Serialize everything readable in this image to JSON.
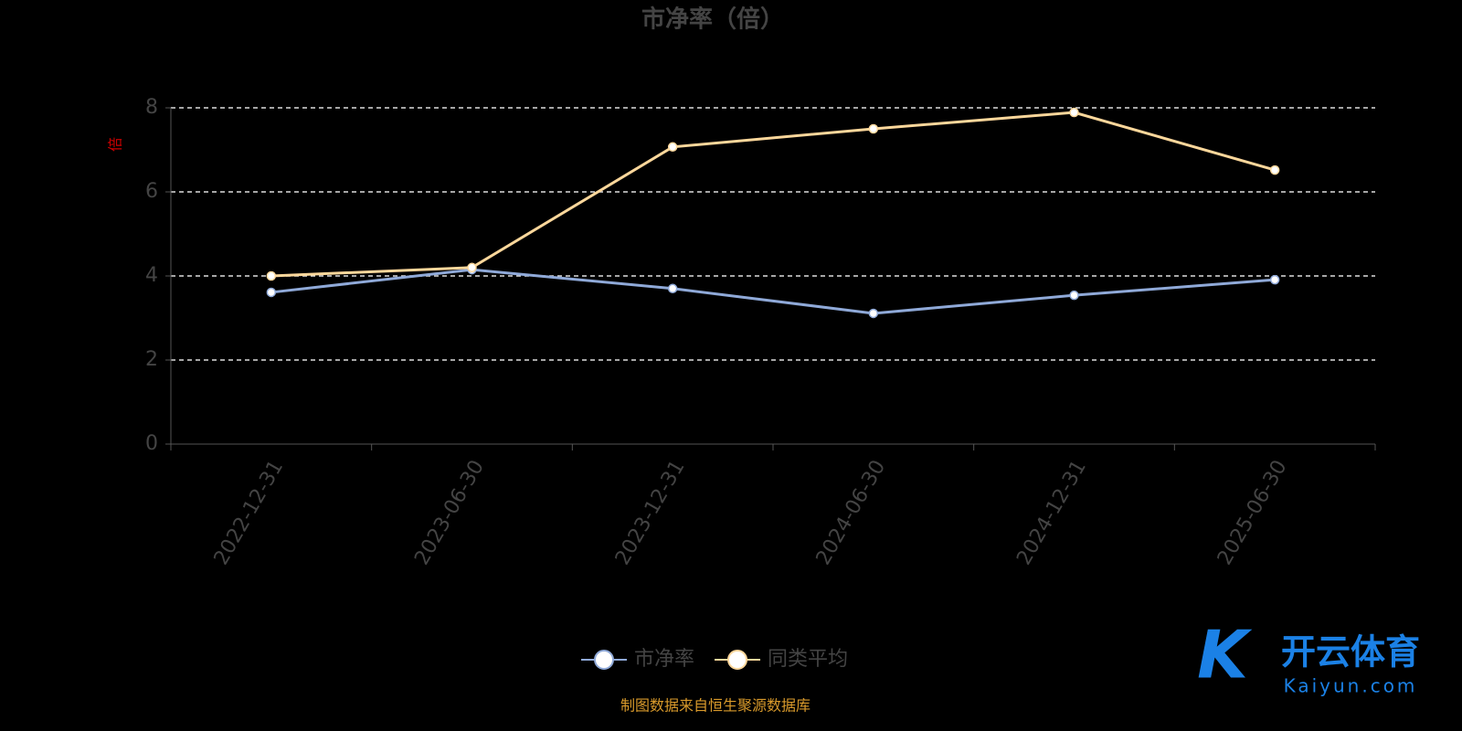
{
  "chart_data": {
    "type": "line",
    "title": "市净率（倍）",
    "y_label": "倍",
    "categories": [
      "2022-12-31",
      "2023-06-30",
      "2023-12-31",
      "2024-06-30",
      "2024-12-31",
      "2025-06-30"
    ],
    "series": [
      {
        "name": "市净率",
        "color": "#8fa9d8",
        "values": [
          3.61,
          4.15,
          3.7,
          3.11,
          3.54,
          3.91
        ]
      },
      {
        "name": "同类平均",
        "color": "#fcd79b",
        "values": [
          4.0,
          4.2,
          7.07,
          7.5,
          7.89,
          6.52
        ]
      }
    ],
    "ylim": [
      0,
      8
    ],
    "yticks": [
      0,
      2,
      4,
      6,
      8
    ],
    "grid": true,
    "source": "制图数据来自恒生聚源数据库",
    "watermark": {
      "brand": "开云体育",
      "site": "Kaiyun.com"
    }
  }
}
